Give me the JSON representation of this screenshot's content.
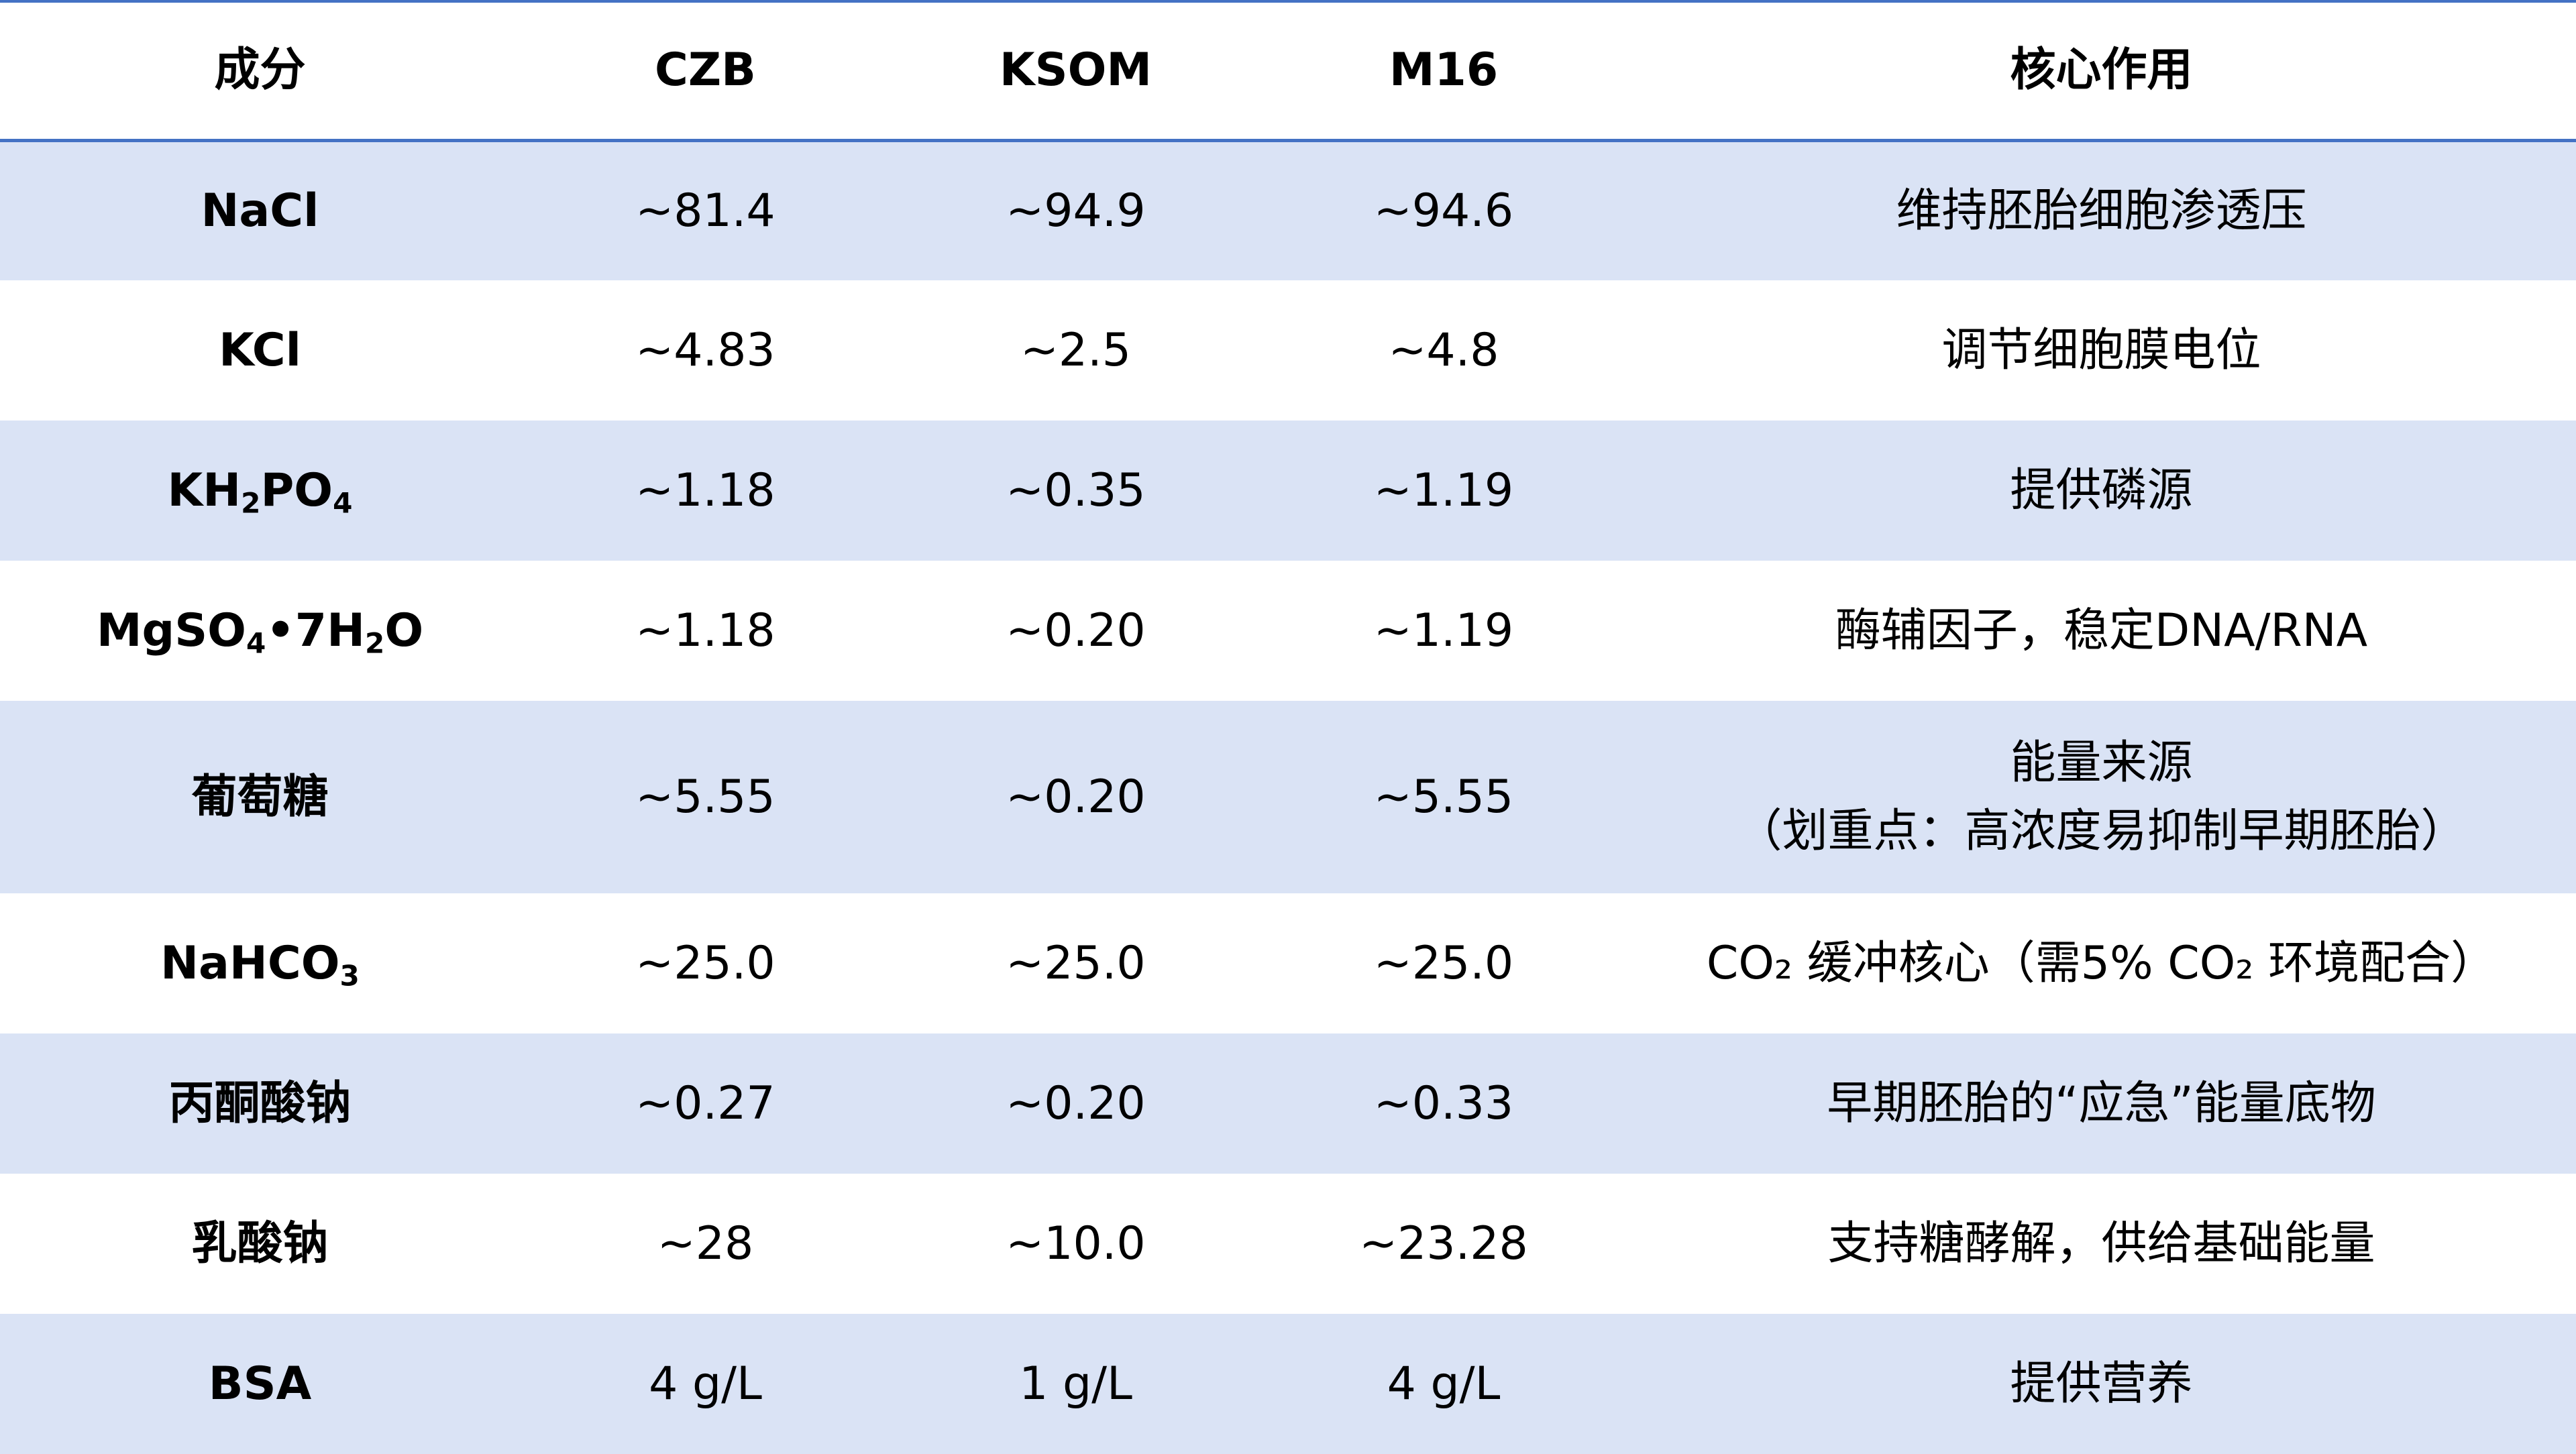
{
  "table": {
    "headers": [
      "成分",
      "CZB",
      "KSOM",
      "M16",
      "核心作用"
    ],
    "rows": [
      {
        "component": {
          "main": "NaCl"
        },
        "czb": "~81.4",
        "ksom": "~94.9",
        "m16": "~94.6",
        "function": [
          "维持胚胎细胞渗透压"
        ]
      },
      {
        "component": {
          "main": "KCl"
        },
        "czb": "~4.83",
        "ksom": "~2.5",
        "m16": "~4.8",
        "function": [
          "调节细胞膜电位"
        ]
      },
      {
        "component": {
          "p1": "KH",
          "s1": "2",
          "p2": "PO",
          "s2": "4"
        },
        "czb": "~1.18",
        "ksom": "~0.35",
        "m16": "~1.19",
        "function": [
          "提供磷源"
        ]
      },
      {
        "component": {
          "p1": "MgSO",
          "s1": "4",
          "p2": "•7H",
          "s2": "2",
          "p3": "O"
        },
        "czb": "~1.18",
        "ksom": "~0.20",
        "m16": "~1.19",
        "function": [
          "酶辅因子，稳定DNA/RNA"
        ]
      },
      {
        "component": {
          "main": "葡萄糖"
        },
        "czb": "~5.55",
        "ksom": "~0.20",
        "m16": "~5.55",
        "function": [
          "能量来源",
          "（划重点：高浓度易抑制早期胚胎）"
        ]
      },
      {
        "component": {
          "p1": "NaHCO",
          "s1": "3"
        },
        "czb": "~25.0",
        "ksom": "~25.0",
        "m16": "~25.0",
        "function": [
          "CO₂ 缓冲核心（需5% CO₂ 环境配合）"
        ]
      },
      {
        "component": {
          "main": "丙酮酸钠"
        },
        "czb": "~0.27",
        "ksom": "~0.20",
        "m16": "~0.33",
        "function": [
          "早期胚胎的“应急”能量底物"
        ]
      },
      {
        "component": {
          "main": "乳酸钠"
        },
        "czb": "~28",
        "ksom": "~10.0",
        "m16": "~23.28",
        "function": [
          "支持糖酵解，供给基础能量"
        ]
      },
      {
        "component": {
          "main": "BSA"
        },
        "czb": "4 g/L",
        "ksom": "1 g/L",
        "m16": "4 g/L",
        "function": [
          "提供营养"
        ]
      }
    ]
  },
  "colors": {
    "header_rule": "#4472c4",
    "band": "#dae3f5"
  }
}
